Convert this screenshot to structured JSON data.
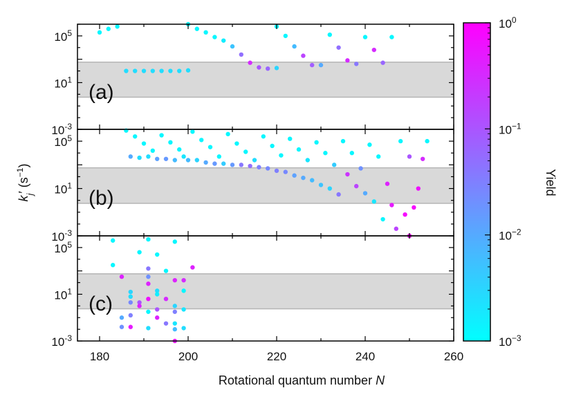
{
  "chart_data": {
    "type": "scatter",
    "xlabel": "Rotational quantum number",
    "xlabel_var": "N",
    "ylabel_main": "k",
    "ylabel_sub": "j",
    "ylabel_prime": "′",
    "ylabel_units": "(s",
    "ylabel_units_exp": "−1",
    "ylabel_units_close": ")",
    "xlim": [
      175,
      260
    ],
    "xticks": [
      "180",
      "200",
      "220",
      "240",
      "260"
    ],
    "ylim_log10": [
      -3,
      6
    ],
    "y_tick_labels": [
      {
        "base": "10",
        "exp": "5",
        "log": 5
      },
      {
        "base": "10",
        "exp": "1",
        "log": 1
      },
      {
        "base": "10",
        "exp": "-3",
        "log": -3
      }
    ],
    "shaded_band_log10": [
      -0.25,
      2.75
    ],
    "colorbar": {
      "label": "Yield",
      "scale": "log",
      "range_log10": [
        -3,
        0
      ],
      "colors": [
        "#00ffff",
        "#ff00ff"
      ],
      "ticks": [
        {
          "base": "10",
          "exp": "0",
          "log": 0
        },
        {
          "base": "10",
          "exp": "−1",
          "log": -1
        },
        {
          "base": "10",
          "exp": "−2",
          "log": -2
        },
        {
          "base": "10",
          "exp": "−3",
          "log": -3
        }
      ]
    },
    "panels": [
      {
        "label": "(a)",
        "points": [
          {
            "N": 180,
            "k": 5.3,
            "yield": -2.9
          },
          {
            "N": 182,
            "k": 5.6,
            "yield": -2.9
          },
          {
            "N": 184,
            "k": 5.8,
            "yield": -2.9
          },
          {
            "N": 186,
            "k": 2.0,
            "yield": -2.6
          },
          {
            "N": 188,
            "k": 2.0,
            "yield": -2.6
          },
          {
            "N": 190,
            "k": 2.0,
            "yield": -2.6
          },
          {
            "N": 192,
            "k": 2.0,
            "yield": -2.6
          },
          {
            "N": 194,
            "k": 2.0,
            "yield": -2.6
          },
          {
            "N": 196,
            "k": 2.0,
            "yield": -2.6
          },
          {
            "N": 198,
            "k": 2.0,
            "yield": -2.6
          },
          {
            "N": 200,
            "k": 2.05,
            "yield": -2.6
          },
          {
            "N": 200,
            "k": 6.0,
            "yield": -2.9
          },
          {
            "N": 202,
            "k": 5.6,
            "yield": -2.9
          },
          {
            "N": 204,
            "k": 5.3,
            "yield": -2.9
          },
          {
            "N": 206,
            "k": 4.9,
            "yield": -2.9
          },
          {
            "N": 208,
            "k": 4.6,
            "yield": -2.8
          },
          {
            "N": 210,
            "k": 4.1,
            "yield": -2.3
          },
          {
            "N": 212,
            "k": 3.4,
            "yield": -1.3
          },
          {
            "N": 214,
            "k": 2.7,
            "yield": -0.5
          },
          {
            "N": 216,
            "k": 2.3,
            "yield": -1.0
          },
          {
            "N": 218,
            "k": 2.2,
            "yield": -1.2
          },
          {
            "N": 220,
            "k": 2.25,
            "yield": -2.5
          },
          {
            "N": 220,
            "k": 5.8,
            "yield": -2.9
          },
          {
            "N": 222,
            "k": 5.0,
            "yield": -2.9
          },
          {
            "N": 224,
            "k": 4.1,
            "yield": -2.2
          },
          {
            "N": 226,
            "k": 3.3,
            "yield": -0.8
          },
          {
            "N": 228,
            "k": 2.5,
            "yield": -1.1
          },
          {
            "N": 230,
            "k": 2.5,
            "yield": -2.0
          },
          {
            "N": 232,
            "k": 5.1,
            "yield": -2.9
          },
          {
            "N": 234,
            "k": 4.0,
            "yield": -1.3
          },
          {
            "N": 236,
            "k": 2.9,
            "yield": -0.5
          },
          {
            "N": 238,
            "k": 2.6,
            "yield": -1.4
          },
          {
            "N": 240,
            "k": 4.9,
            "yield": -2.9
          },
          {
            "N": 242,
            "k": 3.8,
            "yield": -0.5
          },
          {
            "N": 244,
            "k": 2.7,
            "yield": -1.2
          },
          {
            "N": 246,
            "k": 4.9,
            "yield": -2.9
          }
        ]
      },
      {
        "label": "(b)",
        "points": [
          {
            "N": 186,
            "k": 5.9,
            "yield": -2.9
          },
          {
            "N": 187,
            "k": 3.7,
            "yield": -2.0
          },
          {
            "N": 188,
            "k": 5.4,
            "yield": -2.9
          },
          {
            "N": 189,
            "k": 3.6,
            "yield": -2.6
          },
          {
            "N": 190,
            "k": 4.8,
            "yield": -2.9
          },
          {
            "N": 191,
            "k": 3.7,
            "yield": -2.6
          },
          {
            "N": 192,
            "k": 4.2,
            "yield": -2.9
          },
          {
            "N": 193,
            "k": 3.5,
            "yield": -1.9
          },
          {
            "N": 194,
            "k": 5.5,
            "yield": -2.9
          },
          {
            "N": 195,
            "k": 3.5,
            "yield": -1.8
          },
          {
            "N": 196,
            "k": 4.9,
            "yield": -2.9
          },
          {
            "N": 197,
            "k": 3.4,
            "yield": -2.2
          },
          {
            "N": 198,
            "k": 4.3,
            "yield": -2.9
          },
          {
            "N": 199,
            "k": 3.7,
            "yield": -2.7
          },
          {
            "N": 200,
            "k": 3.4,
            "yield": -2.2
          },
          {
            "N": 201,
            "k": 5.8,
            "yield": -2.9
          },
          {
            "N": 202,
            "k": 3.4,
            "yield": -2.5
          },
          {
            "N": 203,
            "k": 5.1,
            "yield": -2.9
          },
          {
            "N": 204,
            "k": 3.2,
            "yield": -2.0
          },
          {
            "N": 205,
            "k": 4.5,
            "yield": -2.9
          },
          {
            "N": 206,
            "k": 3.1,
            "yield": -1.8
          },
          {
            "N": 207,
            "k": 3.7,
            "yield": -2.9
          },
          {
            "N": 208,
            "k": 3.1,
            "yield": -2.4
          },
          {
            "N": 209,
            "k": 5.6,
            "yield": -2.9
          },
          {
            "N": 210,
            "k": 3.0,
            "yield": -1.8
          },
          {
            "N": 211,
            "k": 4.8,
            "yield": -2.9
          },
          {
            "N": 212,
            "k": 3.0,
            "yield": -1.4
          },
          {
            "N": 213,
            "k": 4.1,
            "yield": -2.9
          },
          {
            "N": 214,
            "k": 2.9,
            "yield": -1.3
          },
          {
            "N": 215,
            "k": 3.4,
            "yield": -2.6
          },
          {
            "N": 216,
            "k": 2.8,
            "yield": -1.5
          },
          {
            "N": 217,
            "k": 5.4,
            "yield": -2.9
          },
          {
            "N": 218,
            "k": 2.7,
            "yield": -1.6
          },
          {
            "N": 219,
            "k": 4.6,
            "yield": -2.9
          },
          {
            "N": 220,
            "k": 2.5,
            "yield": -1.5
          },
          {
            "N": 221,
            "k": 3.8,
            "yield": -2.9
          },
          {
            "N": 222,
            "k": 2.4,
            "yield": -1.6
          },
          {
            "N": 223,
            "k": 5.2,
            "yield": -2.9
          },
          {
            "N": 224,
            "k": 2.1,
            "yield": -1.9
          },
          {
            "N": 225,
            "k": 4.3,
            "yield": -2.9
          },
          {
            "N": 226,
            "k": 1.9,
            "yield": -2.0
          },
          {
            "N": 227,
            "k": 3.4,
            "yield": -2.7
          },
          {
            "N": 228,
            "k": 1.7,
            "yield": -2.2
          },
          {
            "N": 229,
            "k": 4.9,
            "yield": -2.9
          },
          {
            "N": 230,
            "k": 1.3,
            "yield": -2.3
          },
          {
            "N": 231,
            "k": 4.0,
            "yield": -2.9
          },
          {
            "N": 232,
            "k": 1.0,
            "yield": -2.5
          },
          {
            "N": 233,
            "k": 3.0,
            "yield": -2.4
          },
          {
            "N": 234,
            "k": 0.5,
            "yield": -1.4
          },
          {
            "N": 235,
            "k": 5.0,
            "yield": -2.9
          },
          {
            "N": 236,
            "k": 2.2,
            "yield": -0.6
          },
          {
            "N": 237,
            "k": 4.0,
            "yield": -2.9
          },
          {
            "N": 238,
            "k": 1.2,
            "yield": -0.8
          },
          {
            "N": 239,
            "k": 2.7,
            "yield": -1.7
          },
          {
            "N": 240,
            "k": 0.6,
            "yield": -2.0
          },
          {
            "N": 241,
            "k": 4.7,
            "yield": -2.9
          },
          {
            "N": 242,
            "k": -0.1,
            "yield": -2.7
          },
          {
            "N": 243,
            "k": 3.7,
            "yield": -2.9
          },
          {
            "N": 244,
            "k": -1.6,
            "yield": -2.9
          },
          {
            "N": 245,
            "k": 1.4,
            "yield": -0.4
          },
          {
            "N": 246,
            "k": -0.4,
            "yield": -0.3
          },
          {
            "N": 247,
            "k": -2.4,
            "yield": -0.8
          },
          {
            "N": 248,
            "k": 5.0,
            "yield": -2.9
          },
          {
            "N": 249,
            "k": -1.2,
            "yield": -0.1
          },
          {
            "N": 250,
            "k": 3.7,
            "yield": -1.0
          },
          {
            "N": 250,
            "k": -3.0,
            "yield": -0.05
          },
          {
            "N": 251,
            "k": -0.6,
            "yield": -0.1
          },
          {
            "N": 252,
            "k": 1.0,
            "yield": -0.2
          },
          {
            "N": 253,
            "k": 3.5,
            "yield": -0.5
          },
          {
            "N": 254,
            "k": 5.0,
            "yield": -2.9
          }
        ]
      },
      {
        "label": "(c)",
        "points": [
          {
            "N": 183,
            "k": 5.6,
            "yield": -2.9
          },
          {
            "N": 183,
            "k": 3.5,
            "yield": -2.9
          },
          {
            "N": 185,
            "k": 2.5,
            "yield": -0.4
          },
          {
            "N": 185,
            "k": -1.0,
            "yield": -2.0
          },
          {
            "N": 185,
            "k": -1.8,
            "yield": -1.7
          },
          {
            "N": 187,
            "k": 1.2,
            "yield": -2.5
          },
          {
            "N": 187,
            "k": 0.8,
            "yield": -2.6
          },
          {
            "N": 187,
            "k": 0.3,
            "yield": -1.6
          },
          {
            "N": 187,
            "k": -0.8,
            "yield": -1.5
          },
          {
            "N": 187,
            "k": -1.8,
            "yield": -0.3
          },
          {
            "N": 189,
            "k": 4.6,
            "yield": -2.9
          },
          {
            "N": 189,
            "k": 0.3,
            "yield": -1.0
          },
          {
            "N": 189,
            "k": 0.0,
            "yield": -0.4
          },
          {
            "N": 191,
            "k": 5.7,
            "yield": -2.9
          },
          {
            "N": 191,
            "k": 3.2,
            "yield": -1.4
          },
          {
            "N": 191,
            "k": 2.5,
            "yield": -1.7
          },
          {
            "N": 191,
            "k": 1.9,
            "yield": -0.4
          },
          {
            "N": 191,
            "k": 0.6,
            "yield": -0.2
          },
          {
            "N": 191,
            "k": -0.5,
            "yield": -2.9
          },
          {
            "N": 191,
            "k": -1.9,
            "yield": -2.6
          },
          {
            "N": 193,
            "k": 4.4,
            "yield": -2.9
          },
          {
            "N": 193,
            "k": 1.3,
            "yield": -2.6
          },
          {
            "N": 193,
            "k": 1.0,
            "yield": -2.8
          },
          {
            "N": 193,
            "k": -0.3,
            "yield": -1.0
          },
          {
            "N": 193,
            "k": -1.0,
            "yield": -0.4
          },
          {
            "N": 195,
            "k": 3.0,
            "yield": -2.9
          },
          {
            "N": 195,
            "k": 0.6,
            "yield": -0.5
          },
          {
            "N": 195,
            "k": -1.5,
            "yield": -1.4
          },
          {
            "N": 197,
            "k": 5.5,
            "yield": -2.9
          },
          {
            "N": 197,
            "k": 2.2,
            "yield": -0.4
          },
          {
            "N": 197,
            "k": 0.0,
            "yield": -2.5
          },
          {
            "N": 197,
            "k": -0.5,
            "yield": -1.5
          },
          {
            "N": 197,
            "k": -1.5,
            "yield": -2.7
          },
          {
            "N": 197,
            "k": -2.0,
            "yield": -2.2
          },
          {
            "N": 197,
            "k": -3.0,
            "yield": -0.3
          },
          {
            "N": 199,
            "k": 1.3,
            "yield": -2.9
          },
          {
            "N": 199,
            "k": -0.3,
            "yield": -2.7
          },
          {
            "N": 199,
            "k": -1.9,
            "yield": -2.6
          },
          {
            "N": 199,
            "k": 2.2,
            "yield": -0.5
          },
          {
            "N": 201,
            "k": 3.3,
            "yield": -0.4
          }
        ]
      }
    ]
  }
}
